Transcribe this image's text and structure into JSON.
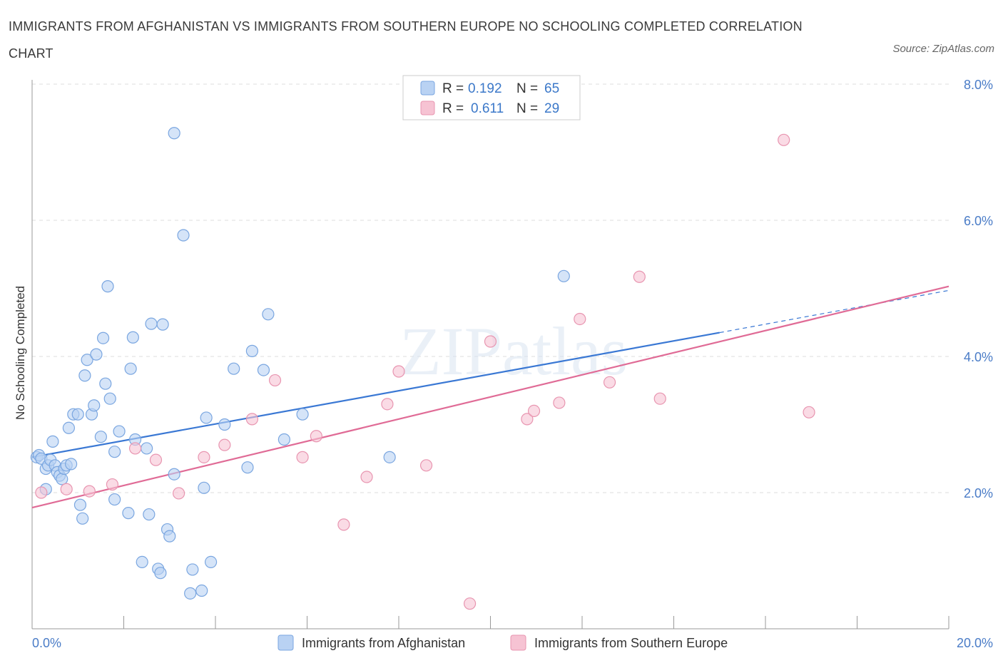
{
  "title": "IMMIGRANTS FROM AFGHANISTAN VS IMMIGRANTS FROM SOUTHERN EUROPE NO SCHOOLING COMPLETED CORRELATION CHART",
  "source": "Source: ZipAtlas.com",
  "watermark": "ZIPatlas",
  "colors": {
    "blue_fill": "#b9d2f3",
    "blue_stroke": "#7aa6e0",
    "blue_line": "#3a78d4",
    "pink_fill": "#f6c3d3",
    "pink_stroke": "#e895b0",
    "pink_line": "#e06b96",
    "grid": "#dddddd",
    "tick_label": "#4a7cc7"
  },
  "legend": {
    "rows": [
      {
        "r_label": "R = ",
        "r_value": "0.192",
        "n_label": "N = ",
        "n_value": "65"
      },
      {
        "r_label": "R = ",
        "r_value": "0.611",
        "n_label": "N = ",
        "n_value": "29"
      }
    ]
  },
  "bottom_legend": [
    "Immigrants from Afghanistan",
    "Immigrants from Southern Europe"
  ],
  "chart_data": {
    "type": "scatter",
    "title": "IMMIGRANTS FROM AFGHANISTAN VS IMMIGRANTS FROM SOUTHERN EUROPE NO SCHOOLING COMPLETED CORRELATION CHART",
    "xlabel": "",
    "ylabel": "No Schooling Completed",
    "xlim": [
      0,
      20
    ],
    "ylim": [
      0,
      8
    ],
    "x_tick_labels": [
      "0.0%",
      "20.0%"
    ],
    "y_ticks": [
      2,
      4,
      6,
      8
    ],
    "y_tick_labels": [
      "2.0%",
      "4.0%",
      "6.0%",
      "8.0%"
    ],
    "grid": true,
    "legend_position": "top-center",
    "series": [
      {
        "name": "Immigrants from Afghanistan",
        "color": "#b9d2f3",
        "points": [
          [
            0.1,
            2.52
          ],
          [
            0.15,
            2.55
          ],
          [
            0.2,
            2.5
          ],
          [
            0.3,
            2.05
          ],
          [
            0.3,
            2.35
          ],
          [
            0.35,
            2.4
          ],
          [
            0.4,
            2.48
          ],
          [
            0.45,
            2.75
          ],
          [
            0.5,
            2.4
          ],
          [
            0.55,
            2.3
          ],
          [
            0.6,
            2.25
          ],
          [
            0.65,
            2.2
          ],
          [
            0.7,
            2.35
          ],
          [
            0.75,
            2.4
          ],
          [
            0.8,
            2.95
          ],
          [
            0.85,
            2.42
          ],
          [
            0.9,
            3.15
          ],
          [
            1.0,
            3.15
          ],
          [
            1.05,
            1.82
          ],
          [
            1.1,
            1.62
          ],
          [
            1.15,
            3.72
          ],
          [
            1.2,
            3.95
          ],
          [
            1.3,
            3.15
          ],
          [
            1.35,
            3.28
          ],
          [
            1.4,
            4.03
          ],
          [
            1.5,
            2.82
          ],
          [
            1.55,
            4.27
          ],
          [
            1.6,
            3.6
          ],
          [
            1.65,
            5.03
          ],
          [
            1.7,
            3.38
          ],
          [
            1.8,
            1.9
          ],
          [
            1.8,
            2.6
          ],
          [
            1.9,
            2.9
          ],
          [
            2.1,
            1.7
          ],
          [
            2.15,
            3.82
          ],
          [
            2.2,
            4.28
          ],
          [
            2.25,
            2.78
          ],
          [
            2.4,
            0.98
          ],
          [
            2.5,
            2.65
          ],
          [
            2.55,
            1.68
          ],
          [
            2.6,
            4.48
          ],
          [
            2.75,
            0.88
          ],
          [
            2.8,
            0.82
          ],
          [
            2.85,
            4.47
          ],
          [
            2.95,
            1.46
          ],
          [
            3.0,
            1.36
          ],
          [
            3.1,
            2.27
          ],
          [
            3.1,
            7.28
          ],
          [
            3.3,
            5.78
          ],
          [
            3.45,
            0.52
          ],
          [
            3.5,
            0.87
          ],
          [
            3.7,
            0.56
          ],
          [
            3.75,
            2.07
          ],
          [
            3.8,
            3.1
          ],
          [
            3.9,
            0.98
          ],
          [
            4.2,
            3.0
          ],
          [
            4.4,
            3.82
          ],
          [
            4.7,
            2.37
          ],
          [
            4.8,
            4.08
          ],
          [
            5.05,
            3.8
          ],
          [
            5.15,
            4.62
          ],
          [
            5.5,
            2.78
          ],
          [
            5.9,
            3.15
          ],
          [
            7.8,
            2.52
          ],
          [
            11.6,
            5.18
          ]
        ]
      },
      {
        "name": "Immigrants from Southern Europe",
        "color": "#f6c3d3",
        "points": [
          [
            0.2,
            2.0
          ],
          [
            0.75,
            2.05
          ],
          [
            1.25,
            2.02
          ],
          [
            1.75,
            2.12
          ],
          [
            2.25,
            2.65
          ],
          [
            2.7,
            2.48
          ],
          [
            3.2,
            1.99
          ],
          [
            3.75,
            2.52
          ],
          [
            4.2,
            2.7
          ],
          [
            4.8,
            3.08
          ],
          [
            5.3,
            3.65
          ],
          [
            5.9,
            2.52
          ],
          [
            6.2,
            2.83
          ],
          [
            6.8,
            1.53
          ],
          [
            7.3,
            2.23
          ],
          [
            7.75,
            3.3
          ],
          [
            8.0,
            3.78
          ],
          [
            8.6,
            2.4
          ],
          [
            9.55,
            0.37
          ],
          [
            10.0,
            4.22
          ],
          [
            10.8,
            3.08
          ],
          [
            10.95,
            3.2
          ],
          [
            11.5,
            3.32
          ],
          [
            11.95,
            4.55
          ],
          [
            12.6,
            3.62
          ],
          [
            13.25,
            5.17
          ],
          [
            13.7,
            3.38
          ],
          [
            16.4,
            7.18
          ],
          [
            16.95,
            3.18
          ]
        ]
      }
    ],
    "trend_lines": [
      {
        "series": "Immigrants from Afghanistan",
        "x": [
          0,
          15
        ],
        "y": [
          2.52,
          4.35
        ],
        "extension_x": [
          15,
          20
        ],
        "extension_y": [
          4.35,
          4.97
        ]
      },
      {
        "series": "Immigrants from Southern Europe",
        "x": [
          0,
          20
        ],
        "y": [
          1.78,
          5.03
        ]
      }
    ]
  }
}
